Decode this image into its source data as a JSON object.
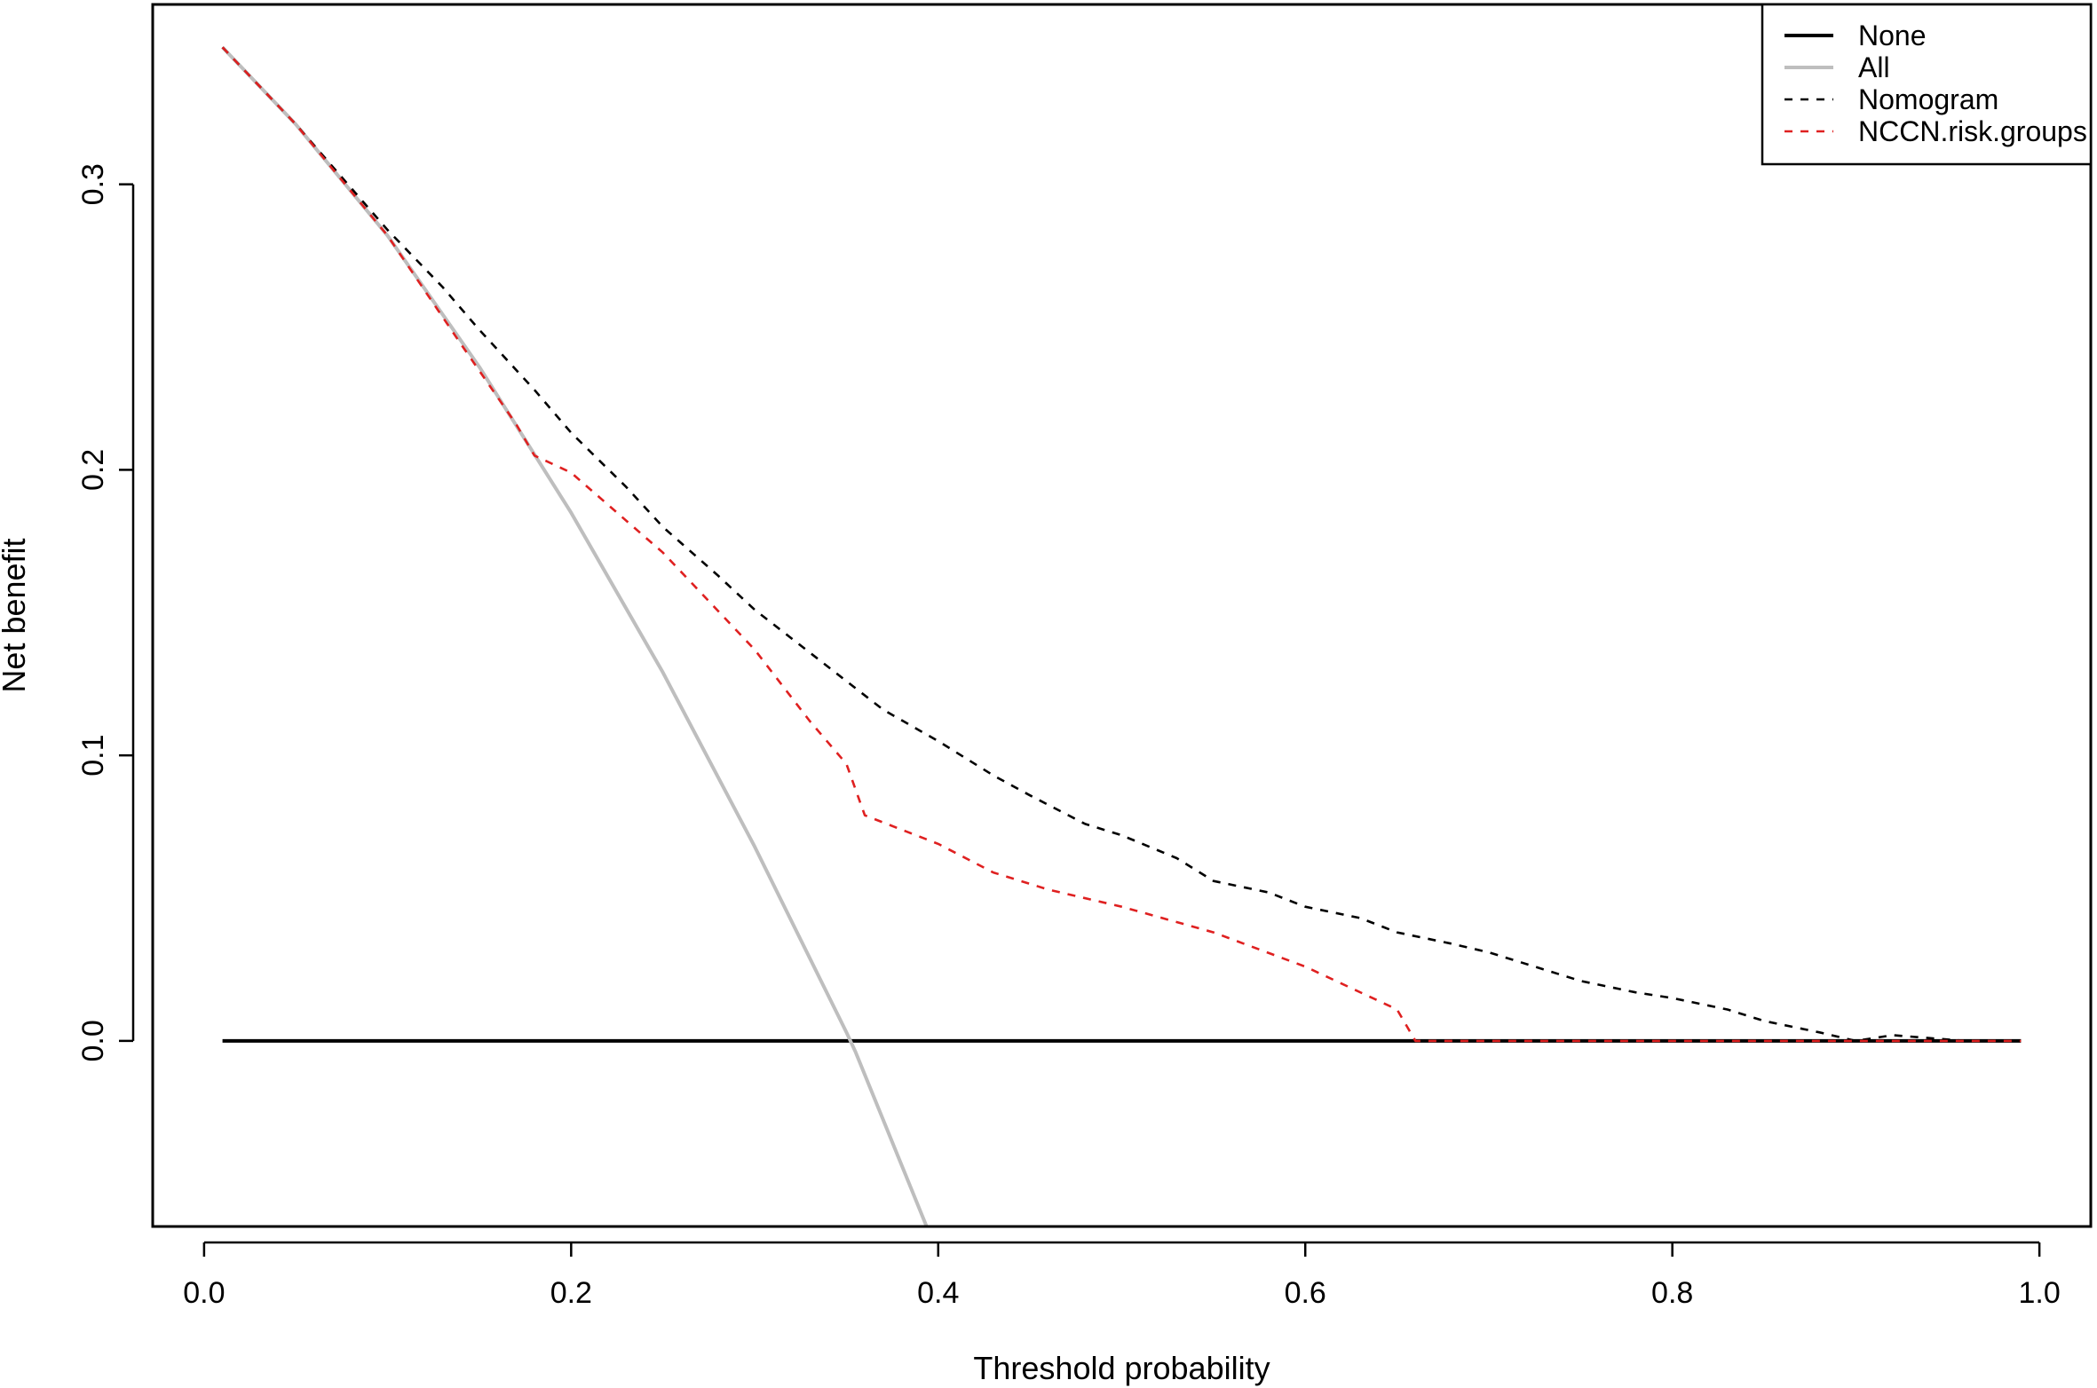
{
  "chart_data": {
    "type": "line",
    "title": "",
    "xlabel": "Threshold probability",
    "ylabel": "Net benefit",
    "xlim": [
      -0.028,
      1.028
    ],
    "ylim": [
      -0.065,
      0.363
    ],
    "x_ticks": [
      0.0,
      0.2,
      0.4,
      0.6,
      0.8,
      1.0
    ],
    "x_tick_labels": [
      "0.0",
      "0.2",
      "0.4",
      "0.6",
      "0.8",
      "1.0"
    ],
    "y_ticks": [
      0.0,
      0.1,
      0.2,
      0.3
    ],
    "y_tick_labels": [
      "0.0",
      "0.1",
      "0.2",
      "0.3"
    ],
    "grid": false,
    "legend_position": "top-right",
    "series": [
      {
        "name": "None",
        "color": "#000000",
        "style": "solid",
        "points": [
          [
            0.01,
            0.0
          ],
          [
            0.99,
            0.0
          ]
        ]
      },
      {
        "name": "All",
        "color": "#bebebe",
        "style": "solid",
        "points": [
          [
            0.01,
            0.348
          ],
          [
            0.05,
            0.321
          ],
          [
            0.1,
            0.282
          ],
          [
            0.15,
            0.236
          ],
          [
            0.2,
            0.185
          ],
          [
            0.25,
            0.129
          ],
          [
            0.3,
            0.068
          ],
          [
            0.35,
            0.003
          ],
          [
            0.355,
            -0.004
          ],
          [
            0.4,
            -0.075
          ]
        ]
      },
      {
        "name": "Nomogram",
        "color": "#000000",
        "style": "dashed",
        "points": [
          [
            0.01,
            0.348
          ],
          [
            0.05,
            0.321
          ],
          [
            0.1,
            0.284
          ],
          [
            0.13,
            0.264
          ],
          [
            0.15,
            0.249
          ],
          [
            0.18,
            0.228
          ],
          [
            0.2,
            0.213
          ],
          [
            0.23,
            0.194
          ],
          [
            0.25,
            0.18
          ],
          [
            0.28,
            0.163
          ],
          [
            0.3,
            0.151
          ],
          [
            0.33,
            0.136
          ],
          [
            0.35,
            0.126
          ],
          [
            0.37,
            0.116
          ],
          [
            0.4,
            0.105
          ],
          [
            0.43,
            0.093
          ],
          [
            0.45,
            0.086
          ],
          [
            0.48,
            0.076
          ],
          [
            0.5,
            0.072
          ],
          [
            0.53,
            0.064
          ],
          [
            0.55,
            0.056
          ],
          [
            0.58,
            0.052
          ],
          [
            0.6,
            0.047
          ],
          [
            0.63,
            0.043
          ],
          [
            0.65,
            0.038
          ],
          [
            0.68,
            0.034
          ],
          [
            0.7,
            0.031
          ],
          [
            0.73,
            0.025
          ],
          [
            0.75,
            0.021
          ],
          [
            0.78,
            0.017
          ],
          [
            0.8,
            0.015
          ],
          [
            0.83,
            0.011
          ],
          [
            0.85,
            0.007
          ],
          [
            0.88,
            0.003
          ],
          [
            0.9,
            0.0
          ],
          [
            0.92,
            0.002
          ],
          [
            0.94,
            0.001
          ],
          [
            0.96,
            0.0
          ],
          [
            0.99,
            0.0
          ]
        ]
      },
      {
        "name": "NCCN.risk.groups",
        "color": "#df2020",
        "style": "dashed",
        "points": [
          [
            0.01,
            0.348
          ],
          [
            0.05,
            0.321
          ],
          [
            0.1,
            0.282
          ],
          [
            0.14,
            0.244
          ],
          [
            0.17,
            0.216
          ],
          [
            0.18,
            0.205
          ],
          [
            0.2,
            0.199
          ],
          [
            0.25,
            0.171
          ],
          [
            0.3,
            0.137
          ],
          [
            0.33,
            0.112
          ],
          [
            0.35,
            0.097
          ],
          [
            0.36,
            0.079
          ],
          [
            0.4,
            0.069
          ],
          [
            0.43,
            0.059
          ],
          [
            0.46,
            0.053
          ],
          [
            0.5,
            0.047
          ],
          [
            0.55,
            0.038
          ],
          [
            0.6,
            0.026
          ],
          [
            0.65,
            0.011
          ],
          [
            0.66,
            0.0
          ],
          [
            0.99,
            0.0
          ]
        ]
      }
    ]
  }
}
